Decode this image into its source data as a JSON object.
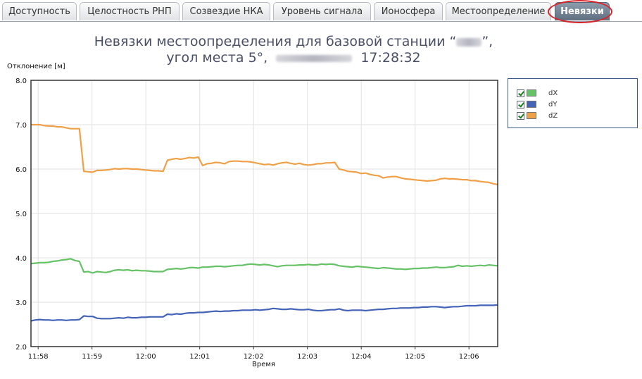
{
  "tabs": [
    {
      "label": "Доступность",
      "active": false
    },
    {
      "label": "Целостность РНП",
      "active": false
    },
    {
      "label": "Созвездие НКА",
      "active": false
    },
    {
      "label": "Уровень сигнала",
      "active": false
    },
    {
      "label": "Ионосфера",
      "active": false
    },
    {
      "label": "Местоопределение",
      "active": false
    },
    {
      "label": "Невязки",
      "active": true
    }
  ],
  "title": {
    "line1_prefix": "Невязки местоопределения для базовой станции “",
    "line1_suffix": "”,",
    "line2_prefix": "угол места 5°,",
    "line2_time": "17:28:32"
  },
  "chart_data": {
    "type": "line",
    "ylabel": "Отклонение [м]",
    "xlabel": "Время",
    "ylim": [
      2.0,
      8.0
    ],
    "yticks": [
      "2.0",
      "3.0",
      "4.0",
      "5.0",
      "6.0",
      "7.0",
      "8.0"
    ],
    "xticks": [
      "11:58",
      "11:59",
      "12:00",
      "12:01",
      "12:02",
      "12:03",
      "12:04",
      "12:05",
      "12:06"
    ],
    "x_start": "11:57:52",
    "x_end": "12:06:32",
    "grid": true,
    "legend_placement": "right",
    "series": [
      {
        "name": "dX",
        "color": "#66c266",
        "checked": true,
        "values": [
          3.87,
          3.88,
          3.89,
          3.89,
          3.9,
          3.92,
          3.93,
          3.95,
          3.96,
          3.98,
          3.94,
          3.92,
          3.68,
          3.69,
          3.66,
          3.69,
          3.68,
          3.67,
          3.69,
          3.72,
          3.73,
          3.72,
          3.73,
          3.71,
          3.72,
          3.71,
          3.71,
          3.7,
          3.69,
          3.69,
          3.69,
          3.74,
          3.75,
          3.76,
          3.75,
          3.76,
          3.78,
          3.78,
          3.77,
          3.79,
          3.79,
          3.8,
          3.81,
          3.81,
          3.8,
          3.81,
          3.82,
          3.83,
          3.83,
          3.85,
          3.86,
          3.85,
          3.84,
          3.85,
          3.84,
          3.82,
          3.8,
          3.82,
          3.83,
          3.83,
          3.83,
          3.84,
          3.84,
          3.85,
          3.84,
          3.84,
          3.86,
          3.85,
          3.86,
          3.85,
          3.82,
          3.81,
          3.8,
          3.79,
          3.81,
          3.8,
          3.79,
          3.78,
          3.77,
          3.76,
          3.78,
          3.77,
          3.76,
          3.75,
          3.75,
          3.74,
          3.75,
          3.76,
          3.76,
          3.77,
          3.77,
          3.78,
          3.79,
          3.78,
          3.78,
          3.79,
          3.8,
          3.83,
          3.81,
          3.82,
          3.81,
          3.82,
          3.83,
          3.82,
          3.84,
          3.83,
          3.82
        ]
      },
      {
        "name": "dY",
        "color": "#4564b8",
        "checked": true,
        "values": [
          2.58,
          2.6,
          2.61,
          2.6,
          2.6,
          2.59,
          2.6,
          2.6,
          2.59,
          2.6,
          2.6,
          2.61,
          2.69,
          2.68,
          2.68,
          2.64,
          2.63,
          2.63,
          2.63,
          2.64,
          2.65,
          2.64,
          2.66,
          2.65,
          2.65,
          2.66,
          2.66,
          2.67,
          2.67,
          2.67,
          2.67,
          2.73,
          2.72,
          2.74,
          2.73,
          2.75,
          2.76,
          2.76,
          2.77,
          2.77,
          2.78,
          2.79,
          2.8,
          2.79,
          2.8,
          2.8,
          2.81,
          2.81,
          2.82,
          2.82,
          2.82,
          2.83,
          2.82,
          2.83,
          2.84,
          2.86,
          2.85,
          2.84,
          2.84,
          2.85,
          2.84,
          2.83,
          2.83,
          2.84,
          2.82,
          2.81,
          2.81,
          2.82,
          2.83,
          2.83,
          2.85,
          2.82,
          2.81,
          2.82,
          2.82,
          2.82,
          2.81,
          2.82,
          2.83,
          2.84,
          2.84,
          2.85,
          2.86,
          2.86,
          2.87,
          2.87,
          2.87,
          2.88,
          2.88,
          2.89,
          2.89,
          2.9,
          2.9,
          2.89,
          2.88,
          2.89,
          2.9,
          2.9,
          2.91,
          2.92,
          2.92,
          2.92,
          2.93,
          2.93,
          2.93,
          2.93,
          2.94
        ]
      },
      {
        "name": "dZ",
        "color": "#f0a047",
        "checked": true,
        "values": [
          7.0,
          7.0,
          7.0,
          6.98,
          6.97,
          6.97,
          6.95,
          6.95,
          6.93,
          6.91,
          6.91,
          6.91,
          5.95,
          5.94,
          5.93,
          5.97,
          5.97,
          5.98,
          5.99,
          6.01,
          6.0,
          6.01,
          6.01,
          6.0,
          6.0,
          5.99,
          5.98,
          5.97,
          5.96,
          5.96,
          5.95,
          6.2,
          6.22,
          6.24,
          6.22,
          6.24,
          6.26,
          6.25,
          6.27,
          6.08,
          6.12,
          6.13,
          6.15,
          6.14,
          6.12,
          6.17,
          6.18,
          6.18,
          6.17,
          6.17,
          6.16,
          6.14,
          6.12,
          6.1,
          6.11,
          6.09,
          6.12,
          6.14,
          6.15,
          6.13,
          6.11,
          6.13,
          6.1,
          6.09,
          6.1,
          6.12,
          6.12,
          6.14,
          6.14,
          6.15,
          6.0,
          5.98,
          5.95,
          5.94,
          5.93,
          5.9,
          5.91,
          5.88,
          5.86,
          5.85,
          5.8,
          5.82,
          5.83,
          5.83,
          5.8,
          5.78,
          5.77,
          5.76,
          5.75,
          5.74,
          5.73,
          5.74,
          5.75,
          5.78,
          5.79,
          5.78,
          5.78,
          5.77,
          5.76,
          5.76,
          5.74,
          5.74,
          5.72,
          5.71,
          5.7,
          5.67,
          5.65
        ]
      }
    ]
  }
}
